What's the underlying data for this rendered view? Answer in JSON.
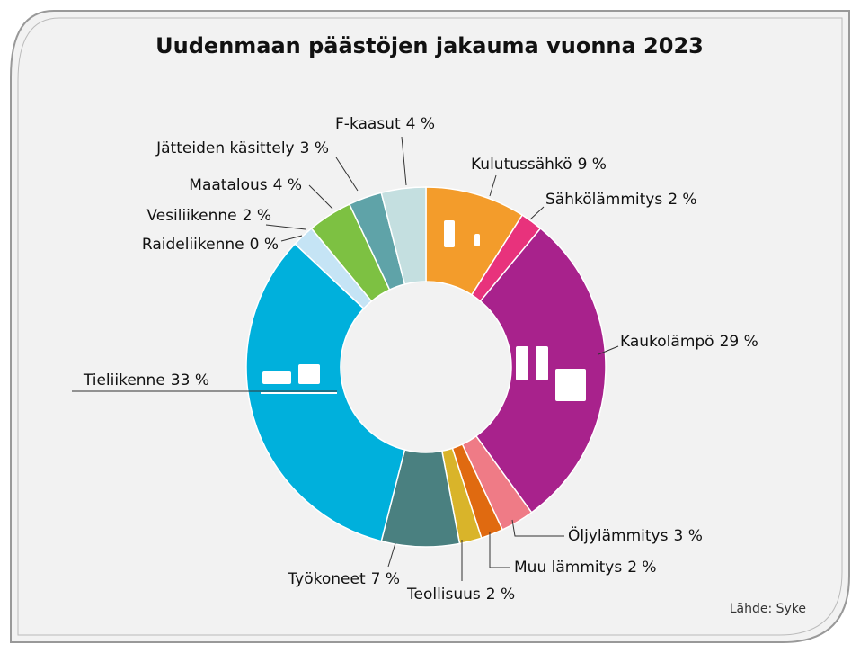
{
  "chart_data": {
    "type": "donut",
    "title": "Uudenmaan päästöjen jakauma vuonna 2023",
    "source": "Lähde: Syke",
    "categories": [
      "Kulutussähkö",
      "Sähkölämmitys",
      "Kaukolämpö",
      "Öljylämmitys",
      "Muu lämmitys",
      "Teollisuus",
      "Työkoneet",
      "Tieliikenne",
      "Raideliikenne",
      "Vesiliikenne",
      "Maatalous",
      "Jätteiden käsittely",
      "F-kaasut"
    ],
    "values": [
      9,
      2,
      29,
      3,
      2,
      2,
      7,
      33,
      0,
      2,
      4,
      3,
      4
    ],
    "value_labels": [
      "9 %",
      "2 %",
      "29 %",
      "3 %",
      "2 %",
      "2 %",
      "7 %",
      "33 %",
      "0 %",
      "2 %",
      "4 %",
      "3 %",
      "4 %"
    ],
    "colors": [
      "#f39c2b",
      "#e8327c",
      "#a8228c",
      "#ef7b86",
      "#e06a10",
      "#d9b42a",
      "#4a8080",
      "#00b0dc",
      "#ffffff",
      "#c5e4f5",
      "#7dc142",
      "#5fa3a8",
      "#c4dfe0"
    ]
  }
}
